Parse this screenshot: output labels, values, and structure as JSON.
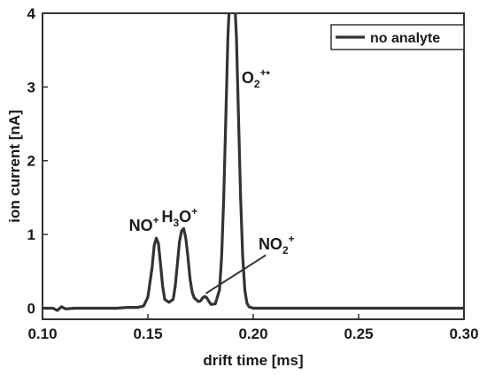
{
  "chart_data": {
    "type": "line",
    "xlabel": "drift time [ms]",
    "ylabel": "ion current [nA]",
    "xlim": [
      0.1,
      0.3
    ],
    "ylim": [
      -0.15,
      4.0
    ],
    "x_ticks": [
      "0.10",
      "0.15",
      "0.20",
      "0.25",
      "0.30"
    ],
    "y_ticks": [
      "0",
      "1",
      "2",
      "3",
      "4"
    ],
    "grid": false,
    "legend_position": "top-right",
    "series": [
      {
        "name": "no analyte",
        "color": "#333333",
        "x": [
          0.1,
          0.105,
          0.107,
          0.109,
          0.111,
          0.115,
          0.125,
          0.135,
          0.14,
          0.145,
          0.148,
          0.15,
          0.152,
          0.153,
          0.154,
          0.155,
          0.156,
          0.157,
          0.158,
          0.16,
          0.162,
          0.163,
          0.164,
          0.165,
          0.166,
          0.167,
          0.168,
          0.169,
          0.17,
          0.171,
          0.172,
          0.174,
          0.175,
          0.176,
          0.177,
          0.178,
          0.179,
          0.18,
          0.182,
          0.184,
          0.185,
          0.186,
          0.187,
          0.188,
          0.189,
          0.19,
          0.191,
          0.192,
          0.193,
          0.194,
          0.195,
          0.196,
          0.197,
          0.198,
          0.2,
          0.21,
          0.25,
          0.3
        ],
        "y": [
          0.0,
          0.0,
          -0.03,
          0.02,
          -0.01,
          0.0,
          0.0,
          0.0,
          0.01,
          0.01,
          0.03,
          0.15,
          0.55,
          0.85,
          0.95,
          0.88,
          0.6,
          0.3,
          0.12,
          0.08,
          0.12,
          0.3,
          0.6,
          0.9,
          1.05,
          1.08,
          0.95,
          0.7,
          0.4,
          0.22,
          0.14,
          0.09,
          0.1,
          0.14,
          0.16,
          0.14,
          0.09,
          0.05,
          0.06,
          0.25,
          0.7,
          1.5,
          2.6,
          3.7,
          4.3,
          4.5,
          4.3,
          3.7,
          2.6,
          1.5,
          0.7,
          0.25,
          0.07,
          0.02,
          0.0,
          0.0,
          0.0,
          0.0
        ]
      }
    ],
    "annotations": [
      {
        "text": "NO",
        "sup": "+",
        "x": 0.141,
        "y": 1.05
      },
      {
        "text": "H",
        "sub": "3",
        "text2": "O",
        "sup": "+",
        "x": 0.1565,
        "y": 1.17
      },
      {
        "text": "O",
        "sub": "2",
        "sup": "+•",
        "x": 0.1945,
        "y": 3.05
      },
      {
        "text": "NO",
        "sub": "2",
        "sup": "+",
        "x": 0.2025,
        "y": 0.8
      }
    ],
    "pointer_line": {
      "from": [
        0.1775,
        0.2
      ],
      "to": [
        0.206,
        0.72
      ]
    }
  }
}
